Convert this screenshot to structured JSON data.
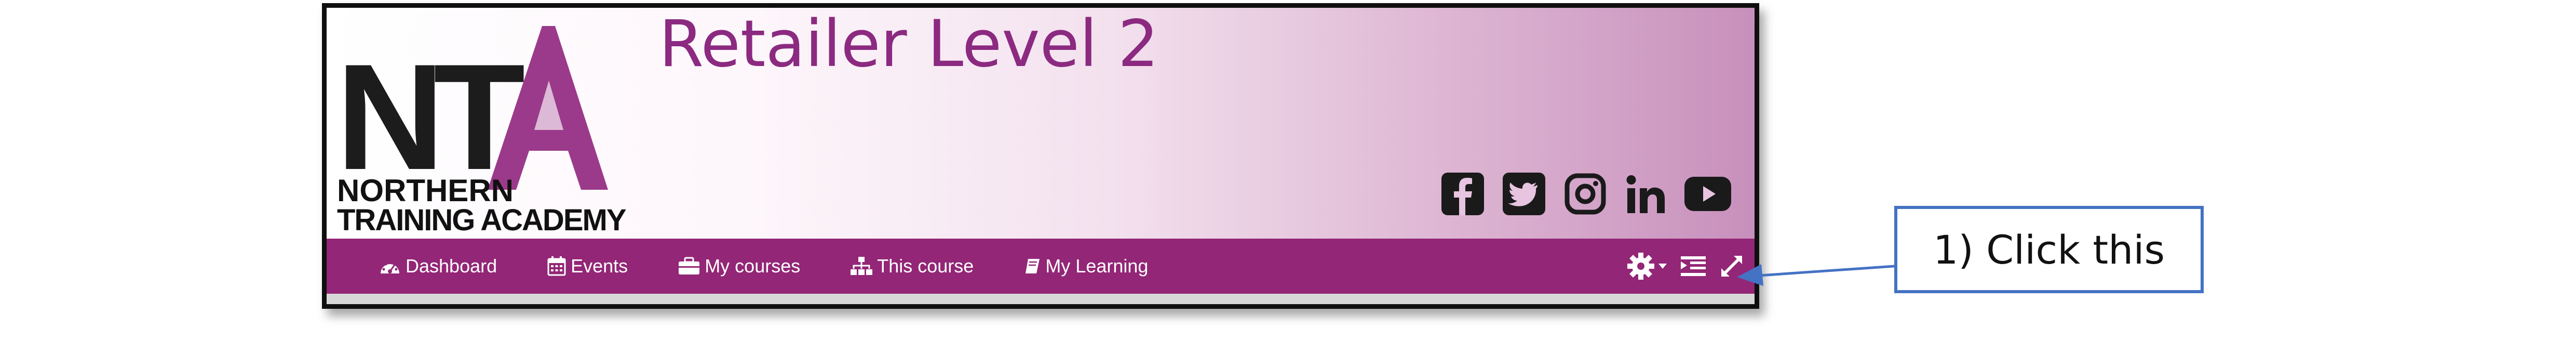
{
  "header": {
    "title": "Retailer Level 2",
    "logo": {
      "top_letters": "NTA",
      "line1": "NORTHERN",
      "line2": "TRAINING ACADEMY"
    }
  },
  "social": [
    "facebook-icon",
    "twitter-icon",
    "instagram-icon",
    "linkedin-icon",
    "youtube-icon"
  ],
  "nav": {
    "items": [
      {
        "label": "Dashboard",
        "icon": "dashboard-icon"
      },
      {
        "label": "Events",
        "icon": "calendar-icon"
      },
      {
        "label": "My courses",
        "icon": "briefcase-icon"
      },
      {
        "label": "This course",
        "icon": "sitemap-icon"
      },
      {
        "label": "My Learning",
        "icon": "book-icon"
      }
    ],
    "right_icons": [
      "gear-icon",
      "caret-down-icon",
      "indent-list-icon",
      "expand-icon"
    ]
  },
  "colors": {
    "navbar": "#932676",
    "title": "#8b2a80",
    "accent": "#9b3a8b",
    "callout_border": "#4472c4"
  },
  "annotation": {
    "text": "1) Click this"
  }
}
